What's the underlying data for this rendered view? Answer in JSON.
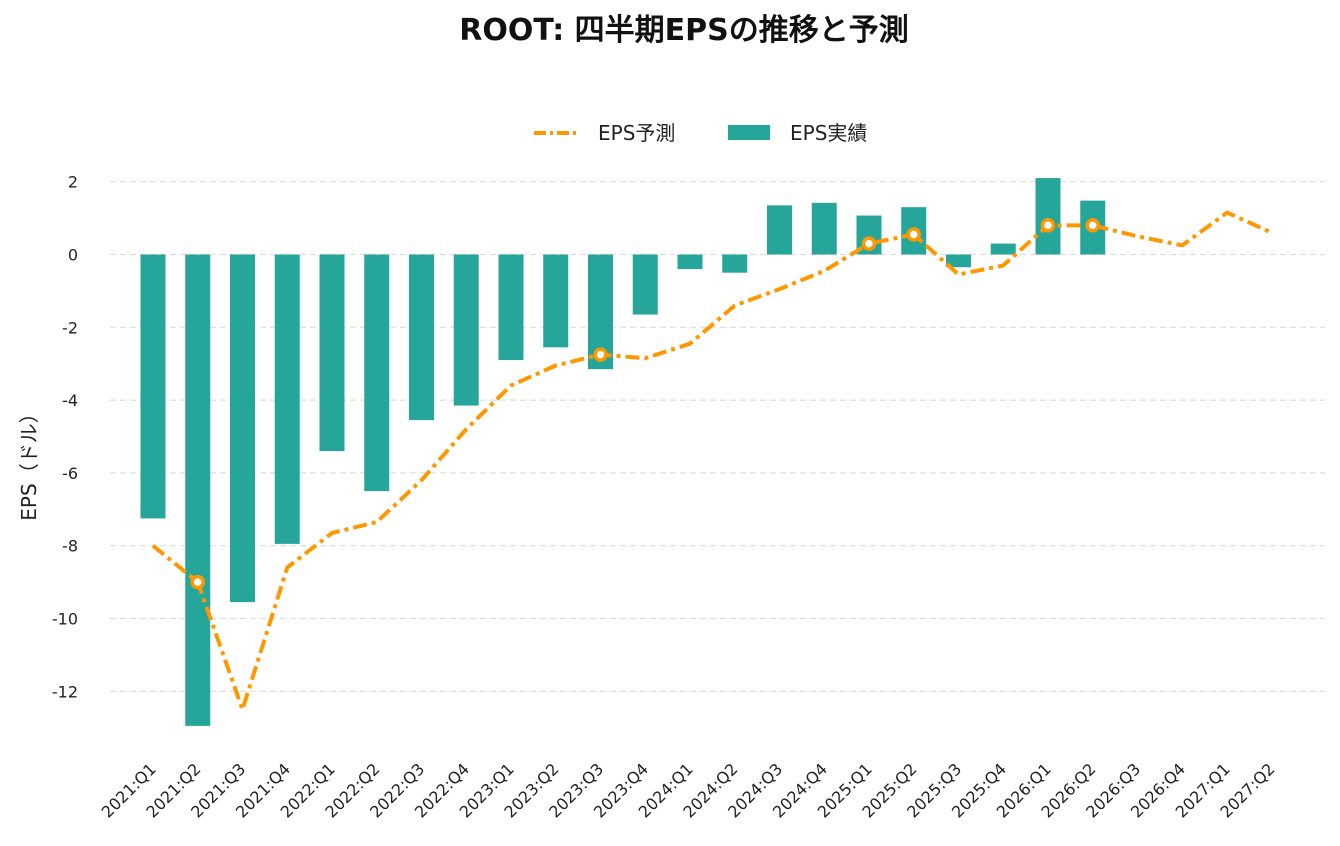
{
  "colors": {
    "actual": "#26a69a",
    "forecast": "#ff9800",
    "grid": "#dddddd"
  },
  "chart_data": {
    "type": "bar",
    "title": "ROOT: 四半期EPSの推移と予測",
    "ylabel": "EPS（ドル）",
    "ylim": [
      -13.8,
      2.6
    ],
    "yticks": [
      2,
      0,
      -2,
      -4,
      -6,
      -8,
      -10,
      -12
    ],
    "grid": true,
    "legend_position": "top-center",
    "categories": [
      "2021:Q1",
      "2021:Q2",
      "2021:Q3",
      "2021:Q4",
      "2022:Q1",
      "2022:Q2",
      "2022:Q3",
      "2022:Q4",
      "2023:Q1",
      "2023:Q2",
      "2023:Q3",
      "2023:Q4",
      "2024:Q1",
      "2024:Q2",
      "2024:Q3",
      "2024:Q4",
      "2025:Q1",
      "2025:Q2",
      "2025:Q3",
      "2025:Q4",
      "2026:Q1",
      "2026:Q2",
      "2026:Q3",
      "2026:Q4",
      "2027:Q1",
      "2027:Q2"
    ],
    "series": [
      {
        "name": "EPS予測",
        "type": "line",
        "values": [
          -8.0,
          -9.0,
          -12.5,
          -8.6,
          -7.65,
          -7.35,
          -6.2,
          -4.8,
          -3.6,
          -3.05,
          -2.75,
          -2.85,
          -2.45,
          -1.4,
          -0.95,
          -0.45,
          0.3,
          0.55,
          -0.55,
          -0.3,
          0.8,
          0.8,
          0.5,
          0.25,
          1.15,
          0.6
        ],
        "markers": [
          "2021:Q2",
          "2023:Q3",
          "2025:Q1",
          "2025:Q2",
          "2026:Q1",
          "2026:Q2"
        ]
      },
      {
        "name": "EPS実績",
        "type": "bar",
        "values": [
          -7.25,
          -12.95,
          -9.55,
          -7.95,
          -5.4,
          -6.5,
          -4.55,
          -4.15,
          -2.9,
          -2.55,
          -3.15,
          -1.65,
          -0.4,
          -0.5,
          1.35,
          1.42,
          1.07,
          1.3,
          -0.35,
          0.3,
          2.1,
          1.48,
          null,
          null,
          null,
          null
        ]
      }
    ]
  }
}
